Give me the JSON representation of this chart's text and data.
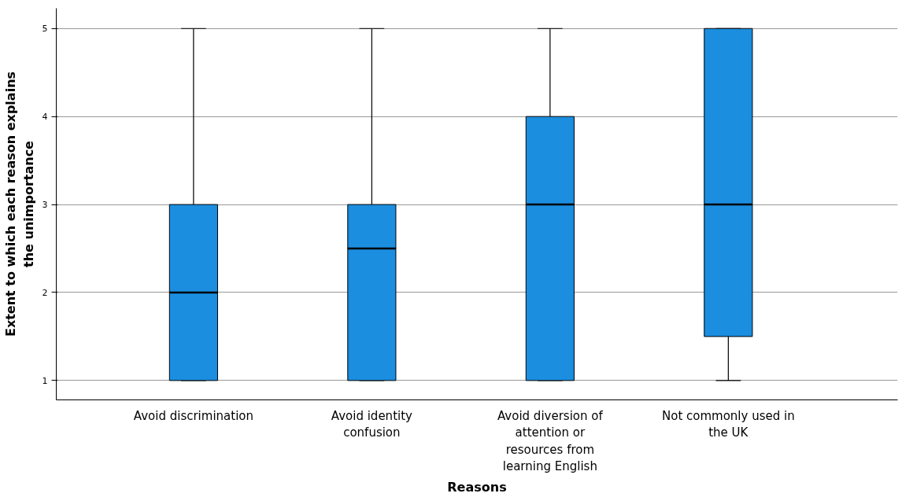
{
  "chart_data": {
    "type": "box",
    "xlabel": "Reasons",
    "ylabel": "Extent to which each reason explains the unimportance",
    "categories": [
      "Avoid discrimination",
      "Avoid identity confusion",
      "Avoid diversion of attention or resources from learning English",
      "Not commonly used in the UK"
    ],
    "boxes": [
      {
        "low": 1,
        "q1": 1,
        "median": 2,
        "q3": 3,
        "high": 5
      },
      {
        "low": 1,
        "q1": 1,
        "median": 2.5,
        "q3": 3,
        "high": 5
      },
      {
        "low": 1,
        "q1": 1,
        "median": 3,
        "q3": 4,
        "high": 5
      },
      {
        "low": 1,
        "q1": 1.5,
        "median": 3,
        "q3": 5,
        "high": 5
      }
    ],
    "color": "#1b8ee0",
    "ylim": [
      0.78,
      5.23
    ],
    "yticks": [
      1,
      2,
      3,
      4,
      5
    ],
    "grid": "y"
  }
}
